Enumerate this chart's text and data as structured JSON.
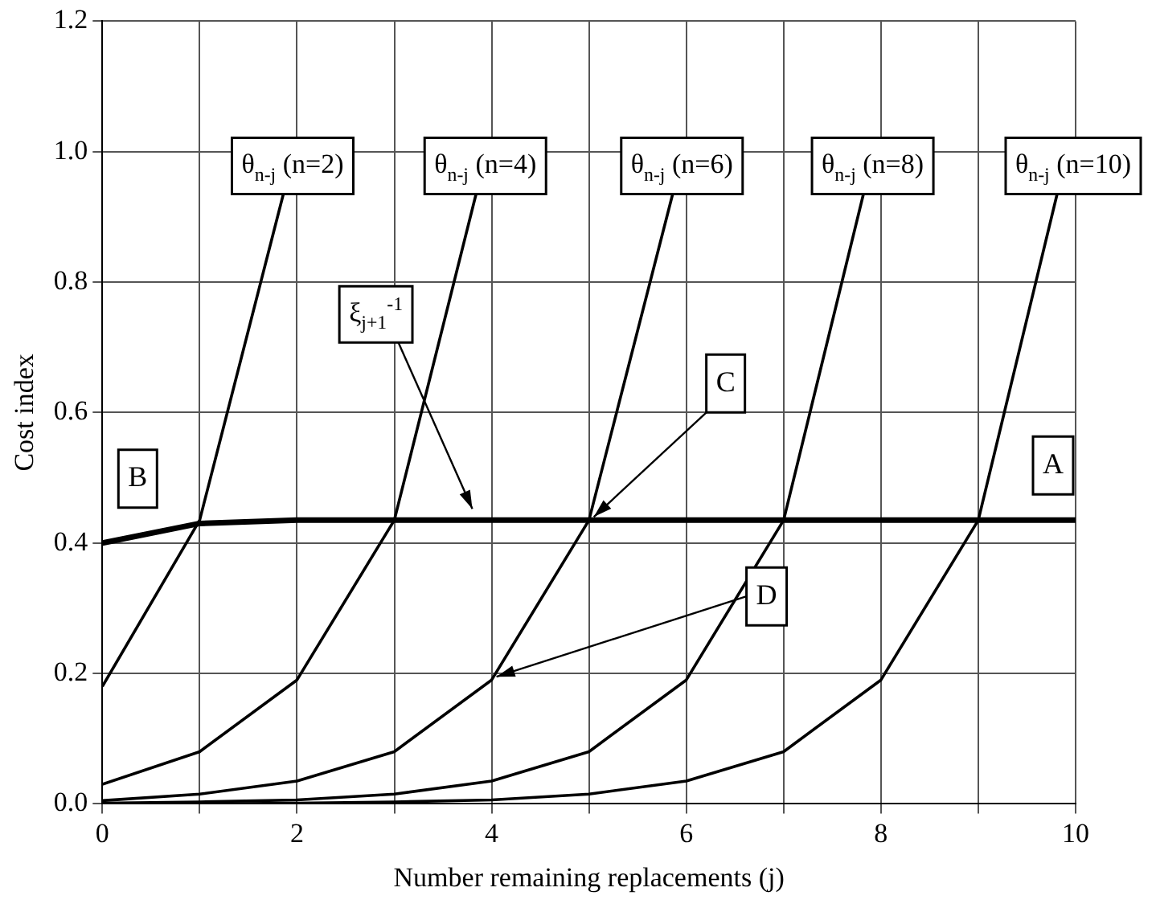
{
  "chart_data": {
    "type": "line",
    "xlabel": "Number remaining replacements (j)",
    "ylabel": "Cost index",
    "xlim": [
      0,
      10
    ],
    "xticks": [
      0,
      {
        "value": 1,
        "label": null
      },
      2,
      {
        "value": 3,
        "label": null
      },
      4,
      {
        "value": 5,
        "label": null
      },
      6,
      {
        "value": 7,
        "label": null
      },
      8,
      {
        "value": 9,
        "label": null
      },
      10
    ],
    "ylim": [
      0,
      1.2
    ],
    "yticks": [
      {
        "value": 0,
        "label": "0.0"
      },
      0.2,
      0.4,
      0.6,
      0.8,
      {
        "value": 1,
        "label": "1.0"
      },
      1.2
    ],
    "grid": true,
    "legend": false,
    "marker": "none",
    "line_style": "solid",
    "series": [
      {
        "name": "ξ$_{j+1}$$^{-1}$",
        "color": "#000000",
        "x": [
          0,
          1,
          2,
          3,
          4,
          5,
          6,
          7,
          8,
          9,
          10
        ],
        "values": [
          0.4,
          0.43,
          0.435,
          0.435,
          0.435,
          0.435,
          0.435,
          0.435,
          0.435,
          0.435,
          0.435
        ]
      },
      {
        "name": "θ$_{n-j}$ (n=2)",
        "color": "#000000",
        "x": [
          0,
          1,
          1.86
        ],
        "values": [
          0.18,
          0.435,
          0.935
        ]
      },
      {
        "name": "θ$_{n-j}$ (n=4)",
        "color": "#000000",
        "x": [
          0,
          1,
          2,
          3,
          3.84
        ],
        "values": [
          0.03,
          0.08,
          0.19,
          0.435,
          0.935
        ]
      },
      {
        "name": "θ$_{n-j}$ (n=6)",
        "color": "#000000",
        "x": [
          0,
          1,
          2,
          3,
          4,
          5,
          5.86
        ],
        "values": [
          0.005,
          0.015,
          0.035,
          0.08,
          0.19,
          0.435,
          0.935
        ]
      },
      {
        "name": "θ$_{n-j}$ (n=8)",
        "color": "#000000",
        "x": [
          0,
          1,
          2,
          3,
          4,
          5,
          6,
          7,
          7.82
        ],
        "values": [
          0.001,
          0.003,
          0.006,
          0.015,
          0.035,
          0.08,
          0.19,
          0.435,
          0.935
        ]
      },
      {
        "name": "θ$_{n-j}$ (n=10)",
        "color": "#000000",
        "x": [
          0,
          1,
          2,
          3,
          4,
          5,
          6,
          7,
          8,
          9,
          9.81
        ],
        "values": [
          0,
          0,
          0.001,
          0.003,
          0.006,
          0.015,
          0.035,
          0.08,
          0.19,
          0.435,
          0.935
        ]
      }
    ],
    "annotations": [
      {
        "text": "A",
        "x": 10,
        "y": 0.435
      },
      {
        "text": "B",
        "x": 0,
        "y": 0.4
      },
      {
        "text": "C",
        "x": 5,
        "y": 0.435
      },
      {
        "text": "D",
        "x": 4,
        "y": 0.19
      }
    ]
  }
}
